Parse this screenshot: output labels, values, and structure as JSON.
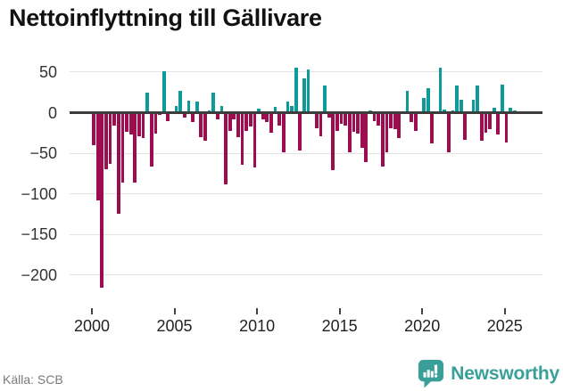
{
  "header": {
    "title": "Nettoinflyttning till Gällivare"
  },
  "footer": {
    "source": "Källa: SCB",
    "brand": "Newsworthy"
  },
  "icons": {
    "brand_logo": "newsworthy-speech-bubble-bar-chart-icon"
  },
  "colors": {
    "positive": "#0d9a9a",
    "negative": "#9d0c4f",
    "axis": "#3d3d3d",
    "grid": "#e3e3e3",
    "brand": "#38a099"
  },
  "chart_data": {
    "type": "bar",
    "title": "Nettoinflyttning till Gällivare",
    "xlabel": "",
    "ylabel": "",
    "x_unit": "quarter",
    "start_year": 2000,
    "start_quarter": 1,
    "end_year": 2025,
    "end_quarter": 3,
    "values": [
      -40,
      -108,
      -215,
      -70,
      -63,
      -16,
      -124,
      -86,
      -24,
      -27,
      -86,
      -29,
      -31,
      25,
      -66,
      -26,
      -3,
      51,
      -10,
      2,
      8,
      27,
      -6,
      15,
      -12,
      14,
      -30,
      -35,
      3,
      25,
      -8,
      8,
      -88,
      -22,
      -8,
      -30,
      -64,
      -22,
      -17,
      -67,
      5,
      -8,
      -12,
      -25,
      7,
      -16,
      -49,
      14,
      8,
      55,
      -47,
      42,
      53,
      -2,
      -19,
      -29,
      33,
      -6,
      -71,
      -23,
      -14,
      -16,
      -49,
      -24,
      -26,
      -43,
      -61,
      3,
      -10,
      -16,
      -66,
      -49,
      -19,
      -20,
      -31,
      -2,
      27,
      -12,
      -23,
      1,
      18,
      30,
      -38,
      -1,
      55,
      4,
      -49,
      3,
      33,
      16,
      -33,
      -2,
      16,
      33,
      -35,
      -25,
      -20,
      6,
      -27,
      34,
      -37,
      6,
      3
    ],
    "x_ticks": [
      2000,
      2005,
      2010,
      2015,
      2020,
      2025
    ],
    "y_ticks": [
      {
        "value": 50,
        "label": "50"
      },
      {
        "value": 0,
        "label": "0"
      },
      {
        "value": -50,
        "label": "−50"
      },
      {
        "value": -100,
        "label": "−100"
      },
      {
        "value": -150,
        "label": "−150"
      },
      {
        "value": -200,
        "label": "−200"
      }
    ],
    "ylim": [
      -228,
      62
    ],
    "grid": true,
    "legend": "none",
    "positive_color": "#0d9a9a",
    "negative_color": "#9d0c4f"
  }
}
